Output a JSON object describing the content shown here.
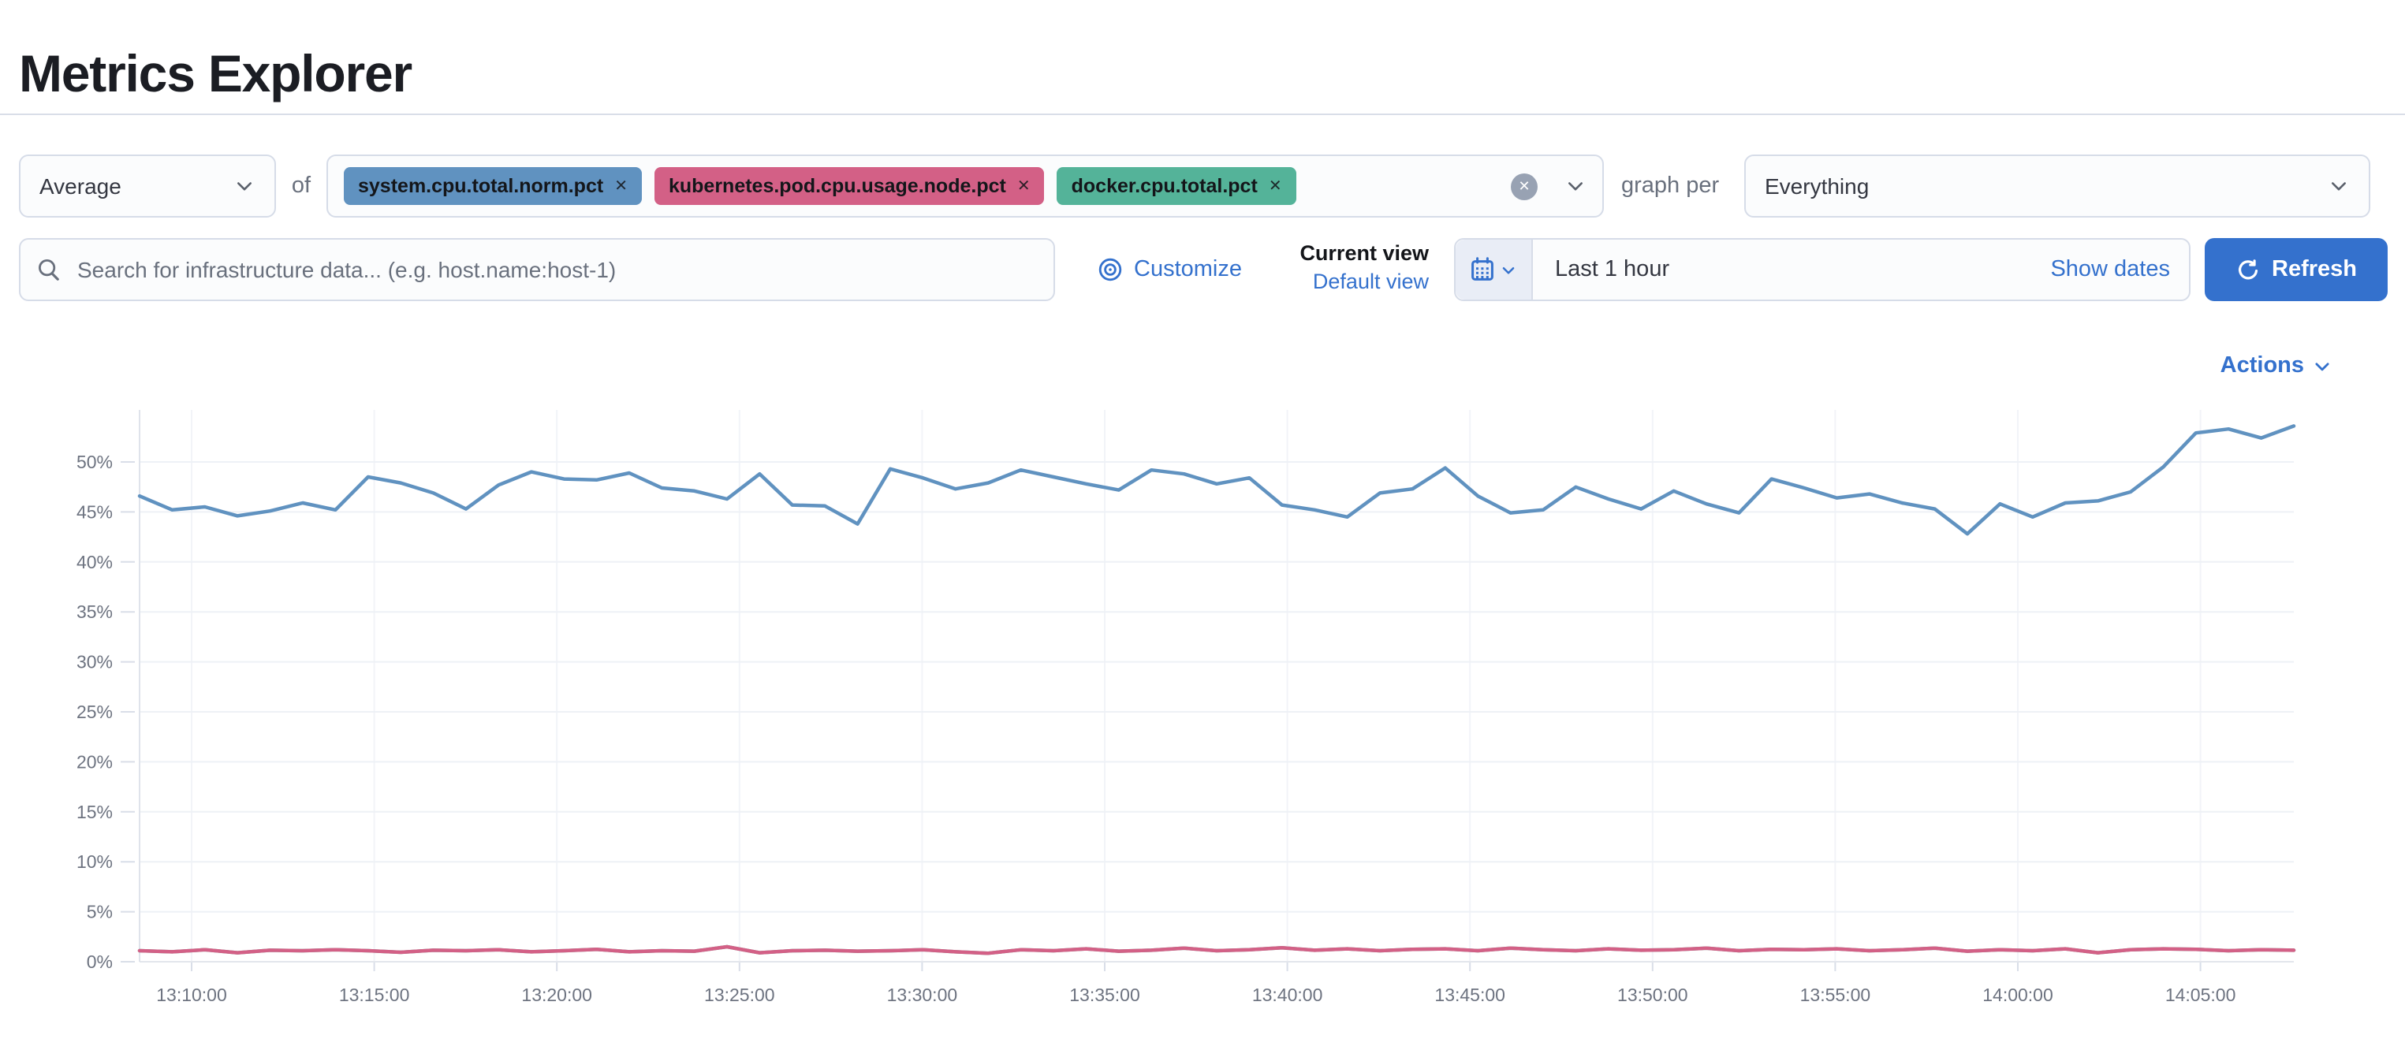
{
  "page": {
    "title": "Metrics Explorer"
  },
  "toolbar": {
    "aggregation": {
      "value": "Average"
    },
    "of_label": "of",
    "metrics": [
      {
        "label": "system.cpu.total.norm.pct",
        "color": "#6092C0"
      },
      {
        "label": "kubernetes.pod.cpu.usage.node.pct",
        "color": "#D36086"
      },
      {
        "label": "docker.cpu.total.pct",
        "color": "#54B399"
      }
    ],
    "remove_icon": "✕",
    "clear_all_icon": "✕",
    "graph_per_label": "graph per",
    "group_by": {
      "value": "Everything"
    }
  },
  "filter_bar": {
    "search": {
      "placeholder": "Search for infrastructure data... (e.g. host.name:host-1)",
      "value": ""
    },
    "customize_label": "Customize",
    "view_switcher": {
      "current": "Current view",
      "default": "Default view"
    },
    "time_picker": {
      "value": "Last 1 hour",
      "show_dates_label": "Show dates"
    },
    "refresh_label": "Refresh"
  },
  "chart_header": {
    "actions_label": "Actions"
  },
  "colors": {
    "accent": "#3471CD",
    "refresh_button_bg": "#3471CD",
    "series_blue": "#6092C0",
    "series_pink": "#D36086",
    "series_green": "#54B399",
    "grid_line": "#eef1f6",
    "axis_line": "#dfe3eb",
    "tick_label": "#6d7380"
  },
  "chart_data": {
    "type": "line",
    "title": "",
    "xlabel": "",
    "ylabel": "",
    "y_unit": "percent",
    "ylim": [
      0,
      55
    ],
    "grid": true,
    "legend": "none",
    "x_axis_type": "time",
    "x_range_note": "approx 13:08 to 14:07, ~1 minute resolution",
    "y_ticks": [
      "0%",
      "5%",
      "10%",
      "15%",
      "20%",
      "25%",
      "30%",
      "35%",
      "40%",
      "45%",
      "50%"
    ],
    "x_tick_labels": [
      "13:10:00",
      "13:15:00",
      "13:20:00",
      "13:25:00",
      "13:30:00",
      "13:35:00",
      "13:40:00",
      "13:45:00",
      "13:50:00",
      "13:55:00",
      "14:00:00",
      "14:05:00"
    ],
    "series": [
      {
        "name": "average of system.cpu.total.norm.pct",
        "color": "#6092C0",
        "values": [
          46.6,
          45.2,
          45.5,
          44.6,
          45.1,
          45.9,
          45.2,
          48.5,
          47.9,
          46.9,
          45.3,
          47.7,
          49.0,
          48.3,
          48.2,
          48.9,
          47.4,
          47.1,
          46.3,
          48.8,
          45.7,
          45.6,
          43.8,
          49.3,
          48.4,
          47.3,
          47.9,
          49.2,
          48.5,
          47.8,
          47.2,
          49.2,
          48.8,
          47.8,
          48.4,
          45.7,
          45.2,
          44.5,
          46.9,
          47.3,
          49.4,
          46.6,
          44.9,
          45.2,
          47.5,
          46.3,
          45.3,
          47.1,
          45.8,
          44.9,
          48.3,
          47.4,
          46.4,
          46.8,
          45.9,
          45.3,
          42.8,
          45.8,
          44.5,
          45.9,
          46.1,
          47.0,
          49.5,
          52.9,
          53.3,
          52.4,
          53.6
        ]
      },
      {
        "name": "average of kubernetes.pod.cpu.usage.node.pct",
        "color": "#D36086",
        "values": [
          1.1,
          1.0,
          1.2,
          0.9,
          1.15,
          1.1,
          1.2,
          1.1,
          0.95,
          1.15,
          1.1,
          1.2,
          1.0,
          1.1,
          1.25,
          1.0,
          1.1,
          1.05,
          1.5,
          0.9,
          1.1,
          1.15,
          1.05,
          1.1,
          1.2,
          1.0,
          0.85,
          1.2,
          1.1,
          1.3,
          1.05,
          1.15,
          1.35,
          1.1,
          1.2,
          1.4,
          1.15,
          1.3,
          1.1,
          1.25,
          1.3,
          1.1,
          1.35,
          1.2,
          1.1,
          1.3,
          1.15,
          1.2,
          1.35,
          1.1,
          1.25,
          1.2,
          1.3,
          1.1,
          1.2,
          1.35,
          1.05,
          1.2,
          1.1,
          1.3,
          0.9,
          1.2,
          1.3,
          1.25,
          1.1,
          1.2,
          1.15
        ]
      },
      {
        "name": "average of docker.cpu.total.pct",
        "color": "#54B399",
        "note": "overlaps the pink line near 1%, hidden beneath it",
        "values": [
          1.1,
          1.0,
          1.2,
          0.9,
          1.15,
          1.1,
          1.2,
          1.1,
          0.95,
          1.15,
          1.1,
          1.2,
          1.0,
          1.1,
          1.25,
          1.0,
          1.1,
          1.05,
          1.5,
          0.9,
          1.1,
          1.15,
          1.05,
          1.1,
          1.2,
          1.0,
          0.85,
          1.2,
          1.1,
          1.3,
          1.05,
          1.15,
          1.35,
          1.1,
          1.2,
          1.4,
          1.15,
          1.3,
          1.1,
          1.25,
          1.3,
          1.1,
          1.35,
          1.2,
          1.1,
          1.3,
          1.15,
          1.2,
          1.35,
          1.1,
          1.25,
          1.2,
          1.3,
          1.1,
          1.2,
          1.35,
          1.05,
          1.2,
          1.1,
          1.3,
          0.9,
          1.2,
          1.3,
          1.25,
          1.1,
          1.2,
          1.15
        ]
      }
    ]
  }
}
